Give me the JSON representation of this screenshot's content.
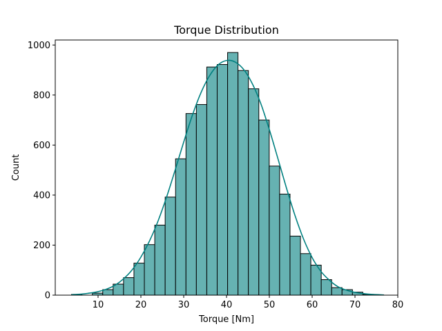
{
  "chart_data": {
    "type": "bar",
    "subtype": "histogram-with-kde",
    "title": "Torque Distribution",
    "xlabel": "Torque [Nm]",
    "ylabel": "Count",
    "xlim": [
      0,
      80
    ],
    "ylim": [
      0,
      1000
    ],
    "xticks": [
      10,
      20,
      30,
      40,
      50,
      60,
      70,
      80
    ],
    "yticks": [
      0,
      200,
      400,
      600,
      800,
      1000
    ],
    "grid": false,
    "bar_color": "#66b2b2",
    "bar_edge_color": "#000000",
    "kde_color": "#008080",
    "bins": [
      {
        "x0": 3.8,
        "x1": 6.23,
        "count": 3
      },
      {
        "x0": 6.23,
        "x1": 8.66,
        "count": 0
      },
      {
        "x0": 8.66,
        "x1": 11.09,
        "count": 8
      },
      {
        "x0": 11.09,
        "x1": 13.52,
        "count": 22
      },
      {
        "x0": 13.52,
        "x1": 15.95,
        "count": 44
      },
      {
        "x0": 15.95,
        "x1": 18.38,
        "count": 70
      },
      {
        "x0": 18.38,
        "x1": 20.81,
        "count": 128
      },
      {
        "x0": 20.81,
        "x1": 23.24,
        "count": 202
      },
      {
        "x0": 23.24,
        "x1": 25.67,
        "count": 280
      },
      {
        "x0": 25.67,
        "x1": 28.1,
        "count": 392
      },
      {
        "x0": 28.1,
        "x1": 30.53,
        "count": 545
      },
      {
        "x0": 30.53,
        "x1": 32.96,
        "count": 726
      },
      {
        "x0": 32.96,
        "x1": 35.39,
        "count": 762
      },
      {
        "x0": 35.39,
        "x1": 37.82,
        "count": 912
      },
      {
        "x0": 37.82,
        "x1": 40.25,
        "count": 922
      },
      {
        "x0": 40.25,
        "x1": 42.68,
        "count": 970
      },
      {
        "x0": 42.68,
        "x1": 45.11,
        "count": 898
      },
      {
        "x0": 45.11,
        "x1": 47.54,
        "count": 825
      },
      {
        "x0": 47.54,
        "x1": 49.97,
        "count": 700
      },
      {
        "x0": 49.97,
        "x1": 52.4,
        "count": 516
      },
      {
        "x0": 52.4,
        "x1": 54.83,
        "count": 404
      },
      {
        "x0": 54.83,
        "x1": 57.26,
        "count": 236
      },
      {
        "x0": 57.26,
        "x1": 59.69,
        "count": 166
      },
      {
        "x0": 59.69,
        "x1": 62.12,
        "count": 120
      },
      {
        "x0": 62.12,
        "x1": 64.55,
        "count": 62
      },
      {
        "x0": 64.55,
        "x1": 66.98,
        "count": 30
      },
      {
        "x0": 66.98,
        "x1": 69.41,
        "count": 22
      },
      {
        "x0": 69.41,
        "x1": 71.84,
        "count": 12
      },
      {
        "x0": 71.84,
        "x1": 74.27,
        "count": 3
      },
      {
        "x0": 74.27,
        "x1": 76.7,
        "count": 1
      }
    ],
    "kde_curve": {
      "x": [
        3.8,
        6,
        8,
        10,
        12,
        14,
        16,
        18,
        20,
        22,
        24,
        26,
        28,
        30,
        32,
        34,
        36,
        38,
        40,
        42,
        44,
        46,
        48,
        50,
        52,
        54,
        56,
        58,
        60,
        62,
        64,
        66,
        68,
        70,
        72,
        74,
        76.7
      ],
      "y": [
        2,
        4,
        8,
        14,
        24,
        40,
        66,
        102,
        152,
        216,
        296,
        392,
        500,
        612,
        718,
        808,
        876,
        920,
        938,
        932,
        902,
        846,
        766,
        662,
        546,
        428,
        318,
        224,
        150,
        96,
        60,
        34,
        20,
        11,
        6,
        3,
        1
      ]
    }
  }
}
